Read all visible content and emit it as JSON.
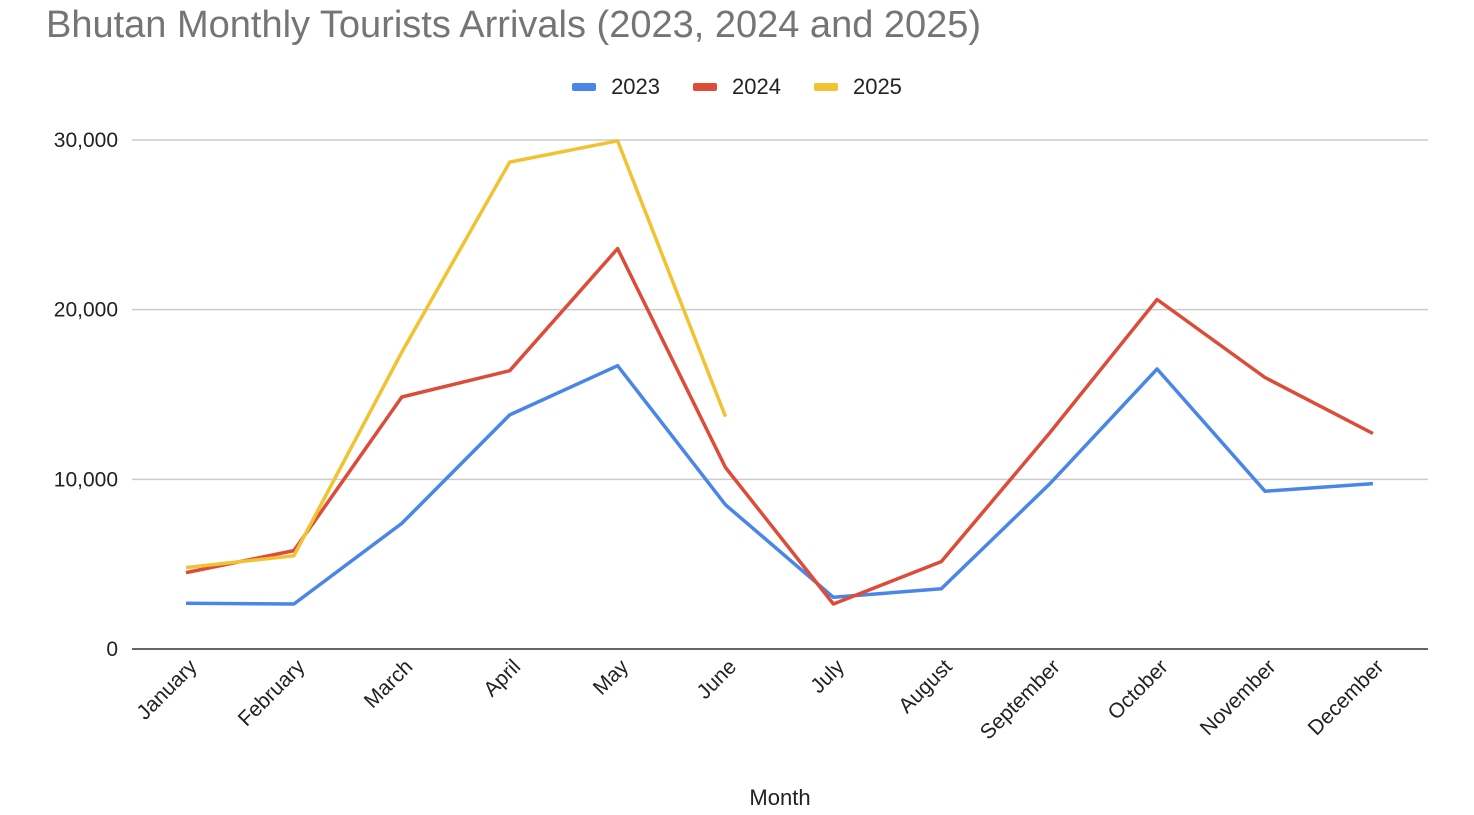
{
  "chart_data": {
    "type": "line",
    "title": "Bhutan Monthly Tourists Arrivals (2023, 2024 and 2025)",
    "xlabel": "Month",
    "ylabel": "",
    "categories": [
      "January",
      "February",
      "March",
      "April",
      "May",
      "June",
      "July",
      "August",
      "September",
      "October",
      "November",
      "December"
    ],
    "ylim": [
      0,
      30000
    ],
    "yticks": [
      0,
      10000,
      20000,
      30000
    ],
    "ytick_labels": [
      "0",
      "10,000",
      "20,000",
      "30,000"
    ],
    "grid": true,
    "legend_position": "top-center",
    "series": [
      {
        "name": "2023",
        "color": "#4a86e8",
        "values": [
          2700,
          2650,
          7400,
          13800,
          16700,
          8500,
          3050,
          3550,
          9700,
          16500,
          9300,
          9750
        ]
      },
      {
        "name": "2024",
        "color": "#dd4b39",
        "values": [
          4500,
          5800,
          14850,
          16400,
          23600,
          10700,
          2650,
          5150,
          12700,
          20600,
          16000,
          12700
        ]
      },
      {
        "name": "2025",
        "color": "#f1c232",
        "values": [
          4800,
          5500,
          17500,
          28700,
          29950,
          13700,
          null,
          null,
          null,
          null,
          null,
          null
        ]
      }
    ]
  }
}
